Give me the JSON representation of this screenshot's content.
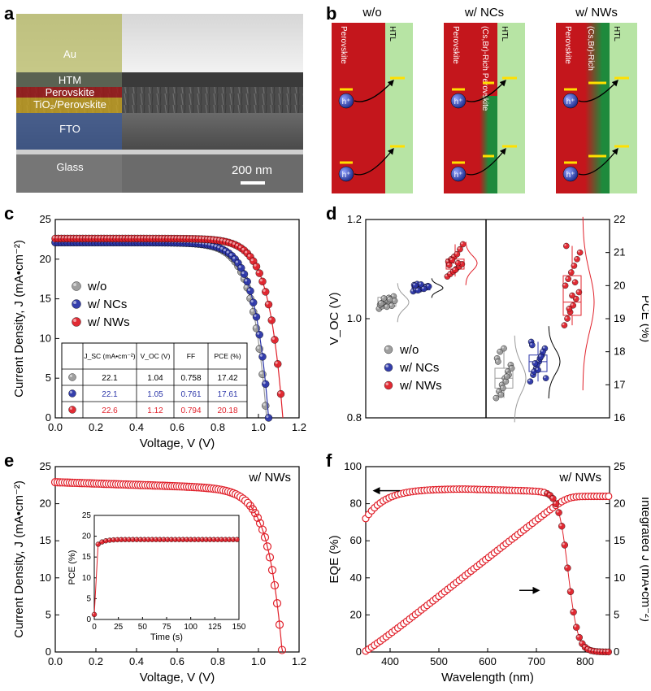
{
  "panel_labels": {
    "a": "a",
    "b": "b",
    "c": "c",
    "d": "d",
    "e": "e",
    "f": "f"
  },
  "sem": {
    "layers": [
      "Au",
      "HTM",
      "Perovskite",
      "TiO₂/Perovskite",
      "FTO",
      "Glass"
    ],
    "scalebar": "200 nm"
  },
  "schematic": {
    "panels": [
      {
        "title": "w/o",
        "labels": [
          "Perovskite",
          "HTL"
        ]
      },
      {
        "title": "w/ NCs",
        "labels": [
          "Perovskite",
          "(Cs,Br)-Rich Perovskite",
          "HTL"
        ]
      },
      {
        "title": "w/ NWs",
        "labels": [
          "Perovskite",
          "(Cs,Br)-Rich",
          "HTL"
        ]
      }
    ],
    "hole": "h⁺",
    "colors": {
      "perovskite": "#c4161c",
      "htl": "#b7e4a4",
      "rich": "#1e8a3c",
      "level": "#ffe000",
      "hole": "#2b3bb0"
    }
  },
  "chart_data": [
    {
      "id": "c",
      "type": "scatter",
      "xlabel": "Voltage, V (V)",
      "ylabel": "Current Density, J (mA•cm⁻²)",
      "xlim": [
        0,
        1.2
      ],
      "ylim": [
        0,
        25
      ],
      "xticks": [
        "0.0",
        "0.2",
        "0.4",
        "0.6",
        "0.8",
        "1.0",
        "1.2"
      ],
      "yticks": [
        "0",
        "5",
        "10",
        "15",
        "20",
        "25"
      ],
      "series": [
        {
          "name": "w/o",
          "color": "#9a9a9a",
          "jsc": 22.1,
          "voc": 1.04,
          "n": 10
        },
        {
          "name": "w/ NCs",
          "color": "#2b35a8",
          "jsc": 22.1,
          "voc": 1.05,
          "n": 10
        },
        {
          "name": "w/ NWs",
          "color": "#e0202a",
          "jsc": 22.6,
          "voc": 1.12,
          "n": 10
        }
      ],
      "table": {
        "headers": [
          "J_SC (mA•cm⁻²)",
          "V_OC (V)",
          "FF",
          "PCE (%)"
        ],
        "rows": [
          [
            "22.1",
            "1.04",
            "0.758",
            "17.42"
          ],
          [
            "22.1",
            "1.05",
            "0.761",
            "17.61"
          ],
          [
            "22.6",
            "1.12",
            "0.794",
            "20.18"
          ]
        ]
      }
    },
    {
      "id": "d",
      "type": "scatter",
      "ylabel_left": "V_OC (V)",
      "ylabel_right": "PCE (%)",
      "ylim_left": [
        0.8,
        1.2
      ],
      "ylim_right": [
        16,
        22
      ],
      "yticks_left": [
        "0.8",
        "1.0",
        "1.2"
      ],
      "yticks_right": [
        "16",
        "17",
        "18",
        "19",
        "20",
        "21",
        "22"
      ],
      "legend": [
        "w/o",
        "w/ NCs",
        "w/ NWs"
      ],
      "voc_groups": [
        {
          "name": "w/o",
          "color": "#9a9a9a",
          "box": [
            1.025,
            1.033,
            1.043
          ],
          "points": [
            1.02,
            1.025,
            1.03,
            1.035,
            1.04,
            1.045,
            1.028,
            1.033,
            1.038,
            1.042,
            1.026,
            1.036,
            1.031,
            1.041,
            1.024,
            1.039
          ]
        },
        {
          "name": "w/ NCs",
          "color": "#2b35a8",
          "box": [
            1.058,
            1.062,
            1.067
          ],
          "points": [
            1.055,
            1.058,
            1.06,
            1.062,
            1.064,
            1.066,
            1.068,
            1.07,
            1.059,
            1.061,
            1.063,
            1.065,
            1.067,
            1.057,
            1.069,
            1.06
          ]
        },
        {
          "name": "w/ NWs",
          "color": "#e0202a",
          "box": [
            1.1,
            1.112,
            1.12
          ],
          "points": [
            1.085,
            1.09,
            1.095,
            1.1,
            1.105,
            1.11,
            1.115,
            1.12,
            1.125,
            1.13,
            1.14,
            1.15,
            1.108,
            1.118,
            1.098,
            1.112
          ]
        }
      ],
      "pce_groups": [
        {
          "name": "w/o",
          "color": "#9a9a9a",
          "box": [
            16.9,
            17.2,
            17.5
          ],
          "points": [
            16.6,
            16.8,
            17.0,
            17.2,
            17.4,
            17.6,
            17.8,
            18.0,
            16.9,
            17.1,
            17.3,
            17.5,
            17.7,
            16.7,
            18.1,
            17.25
          ]
        },
        {
          "name": "w/ NCs",
          "color": "#2b35a8",
          "box": [
            17.4,
            17.7,
            17.9
          ],
          "points": [
            17.1,
            17.3,
            17.5,
            17.7,
            17.9,
            18.1,
            18.3,
            17.4,
            17.6,
            17.8,
            18.0,
            17.2,
            18.2,
            17.65,
            17.45,
            17.85
          ]
        },
        {
          "name": "w/ NWs",
          "color": "#e0202a",
          "box": [
            19.1,
            19.5,
            20.3
          ],
          "points": [
            18.8,
            19.0,
            19.2,
            19.4,
            19.6,
            19.8,
            20.0,
            20.2,
            20.4,
            20.6,
            20.8,
            21.0,
            21.2,
            19.3,
            19.7,
            20.1
          ]
        }
      ]
    },
    {
      "id": "e",
      "type": "scatter",
      "annotation": "w/ NWs",
      "xlabel": "Voltage, V (V)",
      "ylabel": "Current Density, J (mA•cm⁻²)",
      "xlim": [
        0,
        1.2
      ],
      "ylim": [
        0,
        25
      ],
      "xticks": [
        "0.0",
        "0.2",
        "0.4",
        "0.6",
        "0.8",
        "1.0",
        "1.2"
      ],
      "yticks": [
        "0",
        "5",
        "10",
        "15",
        "20",
        "25"
      ],
      "jsc": 22.9,
      "voc": 1.12,
      "inset": {
        "xlabel": "Time (s)",
        "ylabel": "PCE (%)",
        "xlim": [
          0,
          150
        ],
        "ylim": [
          0,
          25
        ],
        "xticks": [
          "0",
          "25",
          "50",
          "75",
          "100",
          "125",
          "150"
        ],
        "yticks": [
          "0",
          "5",
          "10",
          "15",
          "20",
          "25"
        ],
        "plateau": 19.2
      }
    },
    {
      "id": "f",
      "type": "line",
      "annotation": "w/ NWs",
      "xlabel": "Wavelength (nm)",
      "ylabel_left": "EQE (%)",
      "ylabel_right": "Integrated J (mA•cm⁻²)",
      "xlim": [
        350,
        850
      ],
      "ylim_left": [
        0,
        100
      ],
      "ylim_right": [
        0,
        25
      ],
      "xticks": [
        "400",
        "500",
        "600",
        "700",
        "800"
      ],
      "yticks_left": [
        "0",
        "20",
        "40",
        "60",
        "80",
        "100"
      ],
      "yticks_right": [
        "0",
        "5",
        "10",
        "15",
        "20",
        "25"
      ],
      "integrated_max": 21.0
    }
  ]
}
